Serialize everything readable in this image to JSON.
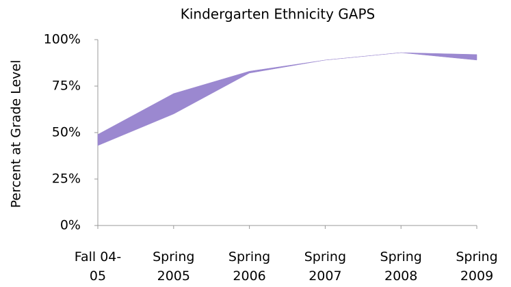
{
  "chart_data": {
    "type": "band",
    "title": "Kindergarten Ethnicity GAPS",
    "y_label": "Percent at Grade Level",
    "categories": [
      "Fall 04-05",
      "Spring 2005",
      "Spring 2006",
      "Spring 2007",
      "Spring 2008",
      "Spring 2009"
    ],
    "series": [
      {
        "color": "#9b88d0",
        "values": [
          49,
          71,
          83,
          89,
          93,
          92
        ]
      },
      {
        "values": [
          43,
          60,
          82,
          89,
          93,
          89
        ]
      }
    ],
    "ylim": [
      0,
      100
    ],
    "yticks": [
      {
        "value": 0,
        "label": "0%"
      },
      {
        "value": 25,
        "label": "25%"
      },
      {
        "value": 50,
        "label": "50%"
      },
      {
        "value": 75,
        "label": "75%"
      },
      {
        "value": 100,
        "label": "100%"
      }
    ],
    "grid": false
  }
}
